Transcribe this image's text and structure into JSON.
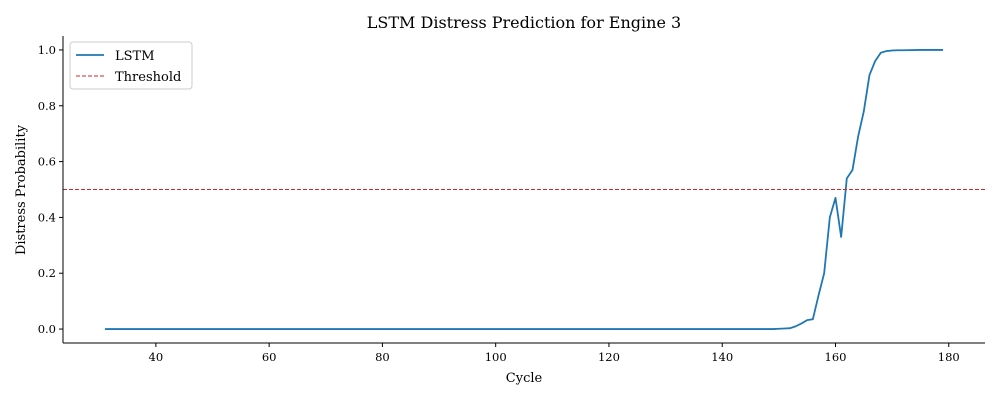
{
  "chart_data": {
    "type": "line",
    "title": "LSTM Distress Prediction for Engine 3",
    "xlabel": "Cycle",
    "ylabel": "Distress Probability",
    "xlim": [
      23.6,
      186.4
    ],
    "ylim": [
      -0.05,
      1.05
    ],
    "xticks": [
      40,
      60,
      80,
      100,
      120,
      140,
      160,
      180
    ],
    "yticks": [
      0.0,
      0.2,
      0.4,
      0.6,
      0.8,
      1.0
    ],
    "grid": false,
    "legend": "top-left",
    "series": [
      {
        "name": "LSTM",
        "color": "#1f77b4",
        "style": "solid",
        "x": [
          31,
          40,
          60,
          80,
          100,
          120,
          140,
          145,
          149,
          150,
          151,
          152,
          153,
          154,
          155,
          156,
          157,
          158,
          159,
          160,
          161,
          162,
          163,
          164,
          165,
          166,
          167,
          168,
          169,
          170,
          171,
          172,
          175,
          179
        ],
        "y": [
          0.0,
          0.0,
          0.0,
          0.0,
          0.0,
          0.0,
          0.0,
          0.0,
          0.0,
          0.001,
          0.002,
          0.003,
          0.01,
          0.02,
          0.032,
          0.035,
          0.12,
          0.2,
          0.4,
          0.47,
          0.33,
          0.54,
          0.57,
          0.69,
          0.78,
          0.91,
          0.96,
          0.99,
          0.996,
          0.998,
          0.999,
          0.999,
          1.0,
          1.0
        ]
      },
      {
        "name": "Threshold",
        "color": "#d62728",
        "style": "dashed",
        "y_constant": 0.5
      }
    ]
  }
}
